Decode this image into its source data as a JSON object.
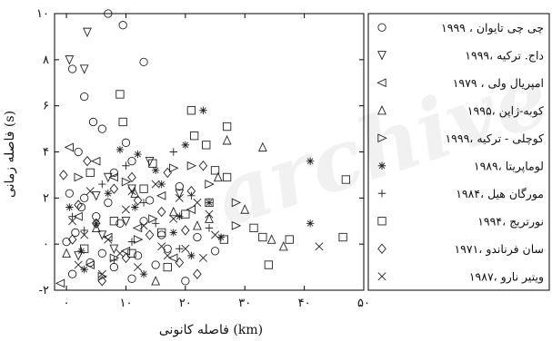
{
  "chart_data": {
    "type": "scatter",
    "title": "",
    "xlabel": "فاصله کانونی (km)",
    "ylabel": "فاصله زمانی (s)",
    "xlim": [
      -2,
      50
    ],
    "ylim": [
      -2,
      10
    ],
    "xticks": [
      {
        "value": 0,
        "label": "۰"
      },
      {
        "value": 10,
        "label": "۱۰"
      },
      {
        "value": 20,
        "label": "۲۰"
      },
      {
        "value": 30,
        "label": "۳۰"
      },
      {
        "value": 40,
        "label": "۴۰"
      },
      {
        "value": 50,
        "label": "۵۰"
      }
    ],
    "yticks": [
      {
        "value": -2,
        "label": "-۲"
      },
      {
        "value": 0,
        "label": "۰"
      },
      {
        "value": 2,
        "label": "۲"
      },
      {
        "value": 4,
        "label": "۴"
      },
      {
        "value": 6,
        "label": "۶"
      },
      {
        "value": 8,
        "label": "۸"
      },
      {
        "value": 10,
        "label": "۱۰"
      }
    ],
    "grid": false,
    "legend_position": "right",
    "series": [
      {
        "name": "۱۹۹۹ ، چی چی تایوان",
        "marker": "circle",
        "points": [
          [
            1,
            7.6
          ],
          [
            3,
            6.4
          ],
          [
            7,
            10.0
          ],
          [
            9.5,
            9.5
          ],
          [
            13,
            7.9
          ],
          [
            4.5,
            5.3
          ],
          [
            10,
            4.4
          ],
          [
            6,
            5.0
          ],
          [
            2,
            4.0
          ],
          [
            11,
            3.6
          ],
          [
            8,
            3.1
          ],
          [
            0.5,
            2.2
          ],
          [
            3,
            2.0
          ],
          [
            5,
            1.2
          ],
          [
            1.5,
            0.5
          ],
          [
            8,
            -1.0
          ],
          [
            12,
            -0.5
          ],
          [
            17,
            -0.2
          ],
          [
            22,
            0.3
          ],
          [
            1,
            -1.3
          ],
          [
            6,
            -0.4
          ],
          [
            14,
            1.9
          ],
          [
            19,
            2.5
          ],
          [
            4,
            -0.8
          ],
          [
            9,
            0.9
          ],
          [
            16,
            0.4
          ],
          [
            2.5,
            1.6
          ],
          [
            11,
            -1.5
          ],
          [
            7,
            1.8
          ],
          [
            15,
            -0.9
          ],
          [
            20,
            -1.6
          ],
          [
            0,
            0.1
          ],
          [
            13,
            1.0
          ],
          [
            25,
            -0.3
          ]
        ]
      },
      {
        "name": "۱۹۹۹، داج. ترکیه",
        "marker": "triangle-down",
        "points": [
          [
            3.5,
            9.2
          ],
          [
            0.5,
            8.0
          ],
          [
            3,
            7.6
          ],
          [
            7,
            2.9
          ],
          [
            5,
            2.1
          ],
          [
            10,
            1.0
          ],
          [
            14,
            3.6
          ],
          [
            19,
            2.2
          ],
          [
            2,
            -0.5
          ],
          [
            6,
            0.4
          ],
          [
            11,
            2.4
          ],
          [
            8,
            -0.2
          ]
        ]
      },
      {
        "name": "۱۹۷۹ ، امپریال ولی",
        "marker": "triangle-left",
        "points": [
          [
            0.5,
            4.2
          ],
          [
            5,
            3.6
          ],
          [
            2,
            1.2
          ],
          [
            8,
            2.9
          ],
          [
            12,
            0.7
          ],
          [
            16,
            2.1
          ],
          [
            21,
            1.5
          ],
          [
            -1,
            -1.7
          ],
          [
            4,
            -0.9
          ],
          [
            10,
            -0.3
          ],
          [
            7,
            0.3
          ],
          [
            18,
            -0.6
          ]
        ]
      },
      {
        "name": "۱۹۹۵، کوبه-ژاپن",
        "marker": "triangle-up",
        "points": [
          [
            27,
            4.5
          ],
          [
            33,
            4.2
          ],
          [
            25.5,
            2.9
          ],
          [
            30,
            1.5
          ],
          [
            34.5,
            0.2
          ],
          [
            36.5,
            -0.1
          ],
          [
            22,
            0.8
          ],
          [
            18,
            1.4
          ],
          [
            0,
            -0.4
          ],
          [
            11.5,
            2.2
          ],
          [
            15,
            -1.6
          ],
          [
            5,
            0.7
          ],
          [
            24,
            1.1
          ]
        ]
      },
      {
        "name": "۱۹۹۹، کوچلی - ترکیه",
        "marker": "triangle-right",
        "points": [
          [
            28.5,
            1.8
          ],
          [
            28.5,
            0.8
          ],
          [
            21,
            3.4
          ],
          [
            24,
            2.6
          ],
          [
            10,
            2.7
          ],
          [
            14.5,
            1.1
          ],
          [
            6,
            -1.4
          ],
          [
            2,
            2.9
          ],
          [
            18,
            3.3
          ],
          [
            8,
            -0.6
          ],
          [
            12,
            0.2
          ]
        ]
      },
      {
        "name": "۱۹۸۹، لوماپریتا",
        "marker": "asterisk",
        "points": [
          [
            23,
            5.8
          ],
          [
            41,
            3.6
          ],
          [
            41,
            0.9
          ],
          [
            20,
            4.3
          ],
          [
            15,
            3.2
          ],
          [
            11.5,
            1.6
          ],
          [
            7,
            2.2
          ],
          [
            2.5,
            -0.3
          ],
          [
            18,
            0.5
          ],
          [
            24,
            1.8
          ],
          [
            13,
            -1.3
          ],
          [
            9,
            4.1
          ],
          [
            5,
            0.9
          ],
          [
            21,
            -0.5
          ],
          [
            16,
            2.6
          ],
          [
            0.5,
            1.6
          ],
          [
            12,
            3.9
          ],
          [
            26,
            0.3
          ],
          [
            3,
            -1.1
          ],
          [
            19,
            1.2
          ]
        ]
      },
      {
        "name": "۱۹۸۴، مورگان هیل",
        "marker": "plus",
        "points": [
          [
            10,
            3.4
          ],
          [
            18,
            4.0
          ],
          [
            6,
            2.6
          ],
          [
            13,
            1.8
          ],
          [
            21,
            2.1
          ],
          [
            3,
            0.6
          ],
          [
            15,
            0.9
          ],
          [
            8,
            -0.7
          ],
          [
            1,
            1.2
          ],
          [
            19,
            -0.2
          ],
          [
            11,
            0.1
          ],
          [
            24,
            0.7
          ]
        ]
      },
      {
        "name": "۱۹۹۴، نورتریج",
        "marker": "square",
        "points": [
          [
            9,
            6.5
          ],
          [
            9.5,
            5.3
          ],
          [
            21,
            5.8
          ],
          [
            21.5,
            4.7
          ],
          [
            23.5,
            4.3
          ],
          [
            27,
            5.1
          ],
          [
            25,
            3.2
          ],
          [
            27,
            2.9
          ],
          [
            26.5,
            0.2
          ],
          [
            31.5,
            0.7
          ],
          [
            33,
            0.3
          ],
          [
            37.5,
            0.2
          ],
          [
            46.5,
            0.3
          ],
          [
            47,
            2.8
          ],
          [
            34,
            -0.9
          ],
          [
            8,
            1.0
          ],
          [
            16,
            0.5
          ],
          [
            13,
            2.4
          ],
          [
            4,
            3.1
          ],
          [
            17,
            -1.0
          ],
          [
            11,
            -0.4
          ],
          [
            20,
            1.3
          ],
          [
            3,
            -0.2
          ],
          [
            24,
            1.8
          ],
          [
            14.5,
            3.5
          ]
        ]
      },
      {
        "name": "۱۹۷۱، سان فرناندو",
        "marker": "diamond",
        "points": [
          [
            -0.5,
            3.0
          ],
          [
            3.5,
            3.6
          ],
          [
            8,
            2.4
          ],
          [
            12,
            1.9
          ],
          [
            17,
            3.1
          ],
          [
            21,
            2.3
          ],
          [
            1,
            0.2
          ],
          [
            5,
            0.9
          ],
          [
            10,
            -0.6
          ],
          [
            14,
            0.4
          ],
          [
            19,
            -0.8
          ],
          [
            22,
            -1.3
          ],
          [
            6,
            -1.6
          ],
          [
            16,
            1.4
          ],
          [
            2,
            1.7
          ],
          [
            11,
            2.9
          ],
          [
            20,
            0.6
          ],
          [
            23,
            3.4
          ]
        ]
      },
      {
        "name": "۱۹۸۷، ویتیر نارو",
        "marker": "cross",
        "points": [
          [
            1,
            1.0
          ],
          [
            4,
            2.3
          ],
          [
            7,
            0.2
          ],
          [
            10,
            1.5
          ],
          [
            13,
            0.8
          ],
          [
            15,
            2.6
          ],
          [
            18,
            1.1
          ],
          [
            20,
            -0.2
          ],
          [
            22,
            1.8
          ],
          [
            25,
            0.4
          ],
          [
            2,
            -0.9
          ],
          [
            6,
            -1.3
          ],
          [
            9,
            -0.4
          ],
          [
            12,
            -1.0
          ],
          [
            16,
            -0.1
          ],
          [
            19,
            2.0
          ],
          [
            23,
            -0.6
          ],
          [
            24,
            1.3
          ],
          [
            42.5,
            -0.1
          ],
          [
            3,
            0.4
          ],
          [
            11,
            2.3
          ],
          [
            17,
            -0.5
          ]
        ]
      }
    ]
  }
}
